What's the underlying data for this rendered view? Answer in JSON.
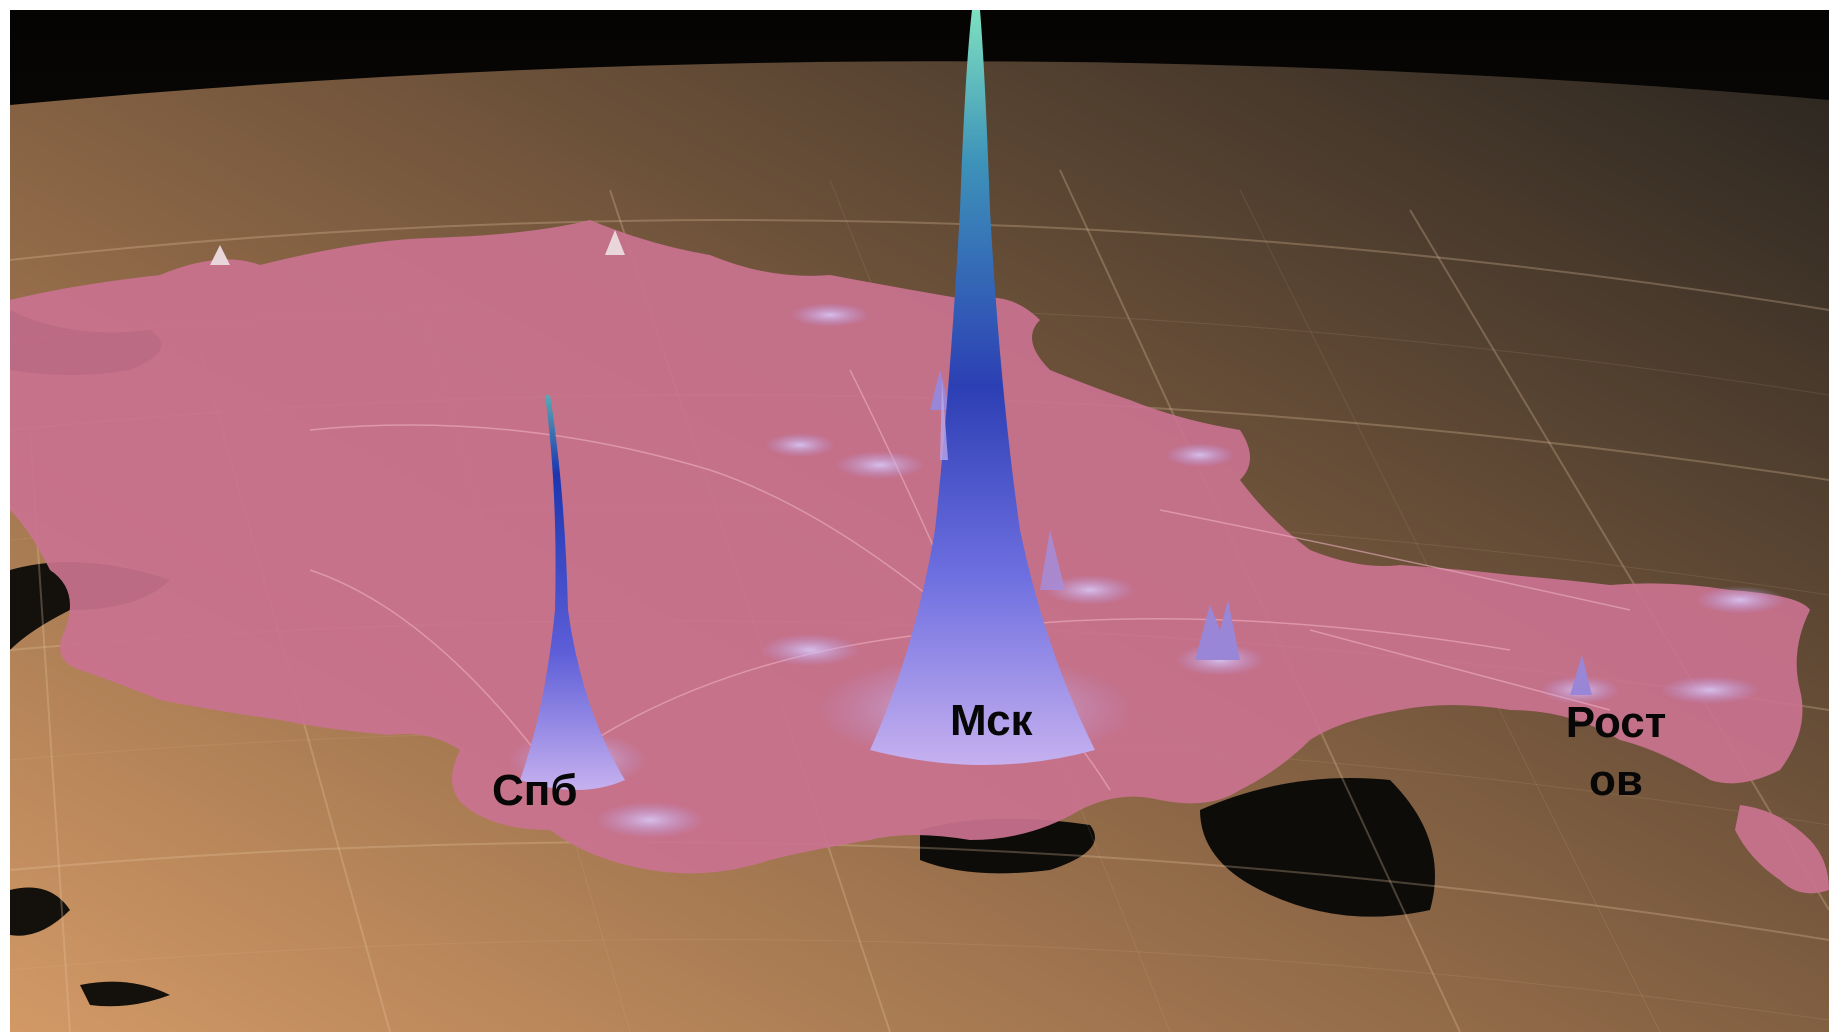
{
  "colors": {
    "space": "#140f0b",
    "land_sunlit": "#c08b5d",
    "land_dark": "#2d2a25",
    "sea": "#0f0d0a",
    "country_fill": "#c9728f",
    "spike_base": "#b39ae0",
    "spike_mid": "#2f45b8",
    "spike_top": "#5ec6b3",
    "grid": "#e8c9a5"
  },
  "map": {
    "cities": [
      {
        "id": "spb",
        "label": "Спб",
        "relative_height": 0.48
      },
      {
        "id": "msk",
        "label": "Мск",
        "relative_height": 1.0
      },
      {
        "id": "rostov",
        "label": "Рост\nов",
        "relative_height": 0.08
      }
    ]
  }
}
